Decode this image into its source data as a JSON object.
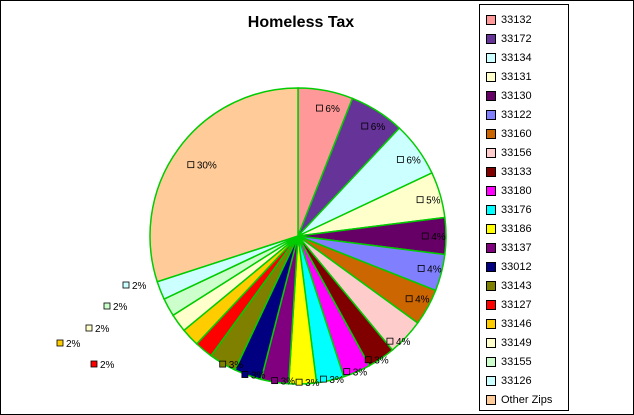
{
  "chart_data": {
    "type": "pie",
    "title": "Homeless Tax",
    "slices": [
      {
        "label": "33132",
        "value": 6,
        "color": "#ff9999"
      },
      {
        "label": "33172",
        "value": 6,
        "color": "#663399"
      },
      {
        "label": "33134",
        "value": 6,
        "color": "#ccffff"
      },
      {
        "label": "33131",
        "value": 5,
        "color": "#ffffcc"
      },
      {
        "label": "33130",
        "value": 4,
        "color": "#660066"
      },
      {
        "label": "33122",
        "value": 4,
        "color": "#8080ff"
      },
      {
        "label": "33160",
        "value": 4,
        "color": "#cc6600"
      },
      {
        "label": "33156",
        "value": 4,
        "color": "#ffcccc"
      },
      {
        "label": "33133",
        "value": 3,
        "color": "#800000"
      },
      {
        "label": "33180",
        "value": 3,
        "color": "#ff00ff"
      },
      {
        "label": "33176",
        "value": 3,
        "color": "#00ffff"
      },
      {
        "label": "33186",
        "value": 3,
        "color": "#ffff00"
      },
      {
        "label": "33137",
        "value": 3,
        "color": "#800080"
      },
      {
        "label": "33012",
        "value": 3,
        "color": "#000080"
      },
      {
        "label": "33143",
        "value": 3,
        "color": "#808000"
      },
      {
        "label": "33127",
        "value": 2,
        "color": "#ff0000"
      },
      {
        "label": "33146",
        "value": 2,
        "color": "#ffcc00"
      },
      {
        "label": "33149",
        "value": 2,
        "color": "#ffffcc"
      },
      {
        "label": "33155",
        "value": 2,
        "color": "#ccffcc"
      },
      {
        "label": "33126",
        "value": 2,
        "color": "#ccffff"
      },
      {
        "label": "Other Zips",
        "value": 30,
        "color": "#ffcc99"
      }
    ],
    "label_format": "percent",
    "legend_position": "right",
    "slice_border_color": "#00cc00"
  }
}
